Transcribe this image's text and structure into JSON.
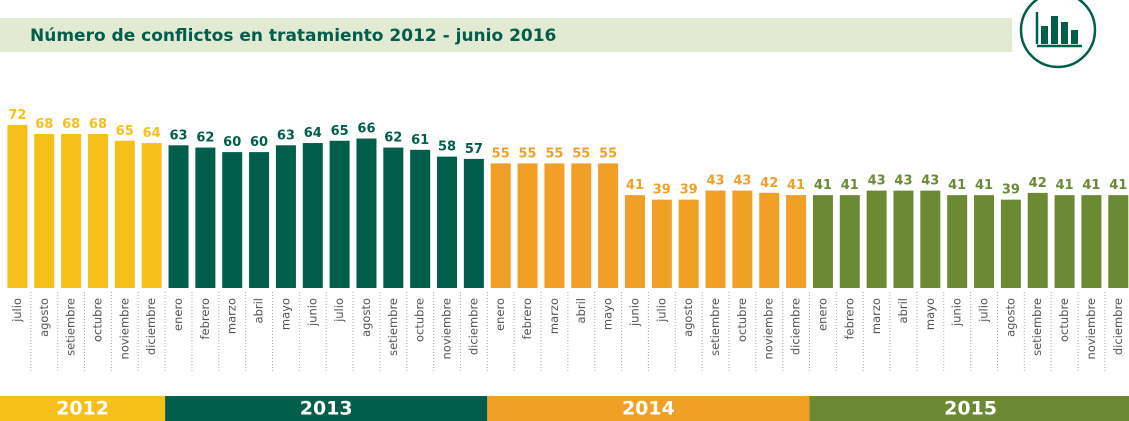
{
  "chart_data": {
    "type": "bar",
    "title": "Número de conflictos en tratamiento 2012 - junio 2016",
    "series": [
      {
        "name": "2012",
        "color": "#f7bf1a",
        "categories": [
          "julio",
          "agosto",
          "setiembre",
          "octubre",
          "noviembre",
          "diciembre"
        ],
        "values": [
          72,
          68,
          68,
          68,
          65,
          64
        ]
      },
      {
        "name": "2013",
        "color": "#005e4b",
        "categories": [
          "enero",
          "febrero",
          "marzo",
          "abril",
          "mayo",
          "junio",
          "julio",
          "agosto",
          "setiembre",
          "octubre",
          "noviembre",
          "diciembre"
        ],
        "values": [
          63,
          62,
          60,
          60,
          63,
          64,
          65,
          66,
          62,
          61,
          58,
          57
        ]
      },
      {
        "name": "2014",
        "color": "#f1a025",
        "categories": [
          "enero",
          "febrero",
          "marzo",
          "abril",
          "mayo",
          "junio",
          "julio",
          "agosto",
          "setiembre",
          "octubre",
          "noviembre",
          "diciembre"
        ],
        "values": [
          55,
          55,
          55,
          55,
          55,
          41,
          39,
          39,
          43,
          43,
          42,
          41
        ]
      },
      {
        "name": "2015",
        "color": "#6b8a33",
        "categories": [
          "enero",
          "febrero",
          "marzo",
          "abril",
          "mayo",
          "junio",
          "julio",
          "agosto",
          "setiembre",
          "octubre",
          "noviembre",
          "diciembre"
        ],
        "values": [
          41,
          41,
          43,
          43,
          43,
          41,
          41,
          39,
          42,
          41,
          41,
          41
        ]
      }
    ]
  }
}
